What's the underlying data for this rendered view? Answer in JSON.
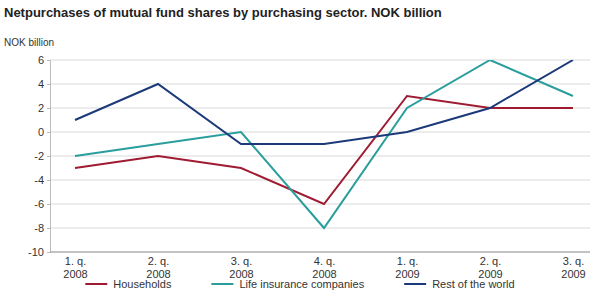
{
  "chart_data": {
    "type": "line",
    "title": "Netpurchases of mutual fund shares by purchasing sector. NOK billion",
    "y_label": "NOK billion",
    "categories": [
      "1. q. 2008",
      "2. q. 2008",
      "3. q. 2008",
      "4. q. 2008",
      "1. q. 2009",
      "2. q. 2009",
      "3. q. 2009"
    ],
    "series": [
      {
        "name": "Households",
        "color": "#9e1b32",
        "values": [
          -3,
          -2,
          -3,
          -6,
          3,
          2,
          2
        ]
      },
      {
        "name": "Life insurance companies",
        "color": "#2a9d9d",
        "values": [
          -2,
          -1,
          0,
          -8,
          2,
          6,
          3
        ]
      },
      {
        "name": "Rest of the world",
        "color": "#1c3a7a",
        "values": [
          1,
          4,
          -1,
          -1,
          0,
          2,
          6
        ]
      }
    ],
    "ylim": [
      -10,
      6
    ],
    "yticks": [
      -10,
      -8,
      -6,
      -4,
      -2,
      0,
      2,
      4,
      6
    ],
    "grid": true,
    "legend": "bottom"
  }
}
